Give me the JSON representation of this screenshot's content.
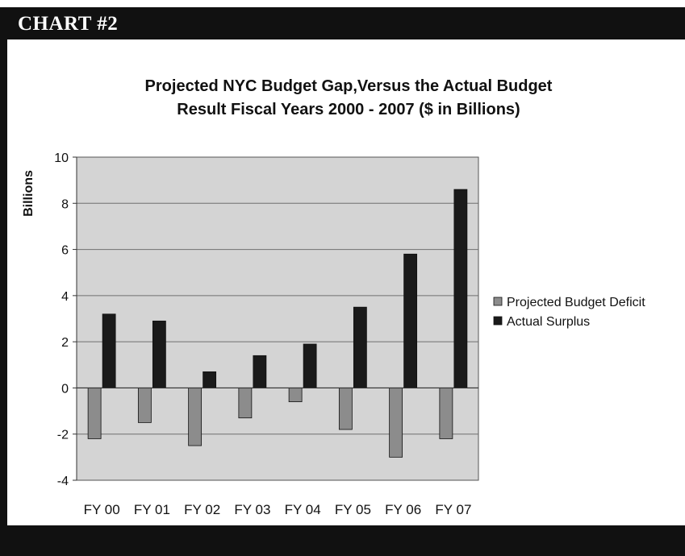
{
  "header": {
    "title": "CHART #2"
  },
  "chart_data": {
    "type": "bar",
    "title": "Projected NYC Budget Gap,Versus the Actual Budget Result Fiscal Years 2000 - 2007 ($ in Billions)",
    "title_lines": [
      "Projected NYC Budget Gap,Versus the Actual Budget",
      "Result Fiscal Years 2000 - 2007 ($ in Billions)"
    ],
    "xlabel": "",
    "ylabel": "Billions",
    "ylim": [
      -4,
      10
    ],
    "yticks": [
      -4,
      -2,
      0,
      2,
      4,
      6,
      8,
      10
    ],
    "ytick_labels": [
      "-4",
      "-2",
      "0",
      "2",
      "4",
      "6",
      "8",
      "10"
    ],
    "categories": [
      "FY 00",
      "FY 01",
      "FY 02",
      "FY 03",
      "FY 04",
      "FY 05",
      "FY 06",
      "FY 07"
    ],
    "grid": true,
    "legend_position": "right",
    "series": [
      {
        "name": "Projected Budget Deficit",
        "color": "#8c8c8c",
        "values": [
          -2.2,
          -1.5,
          -2.5,
          -1.3,
          -0.6,
          -1.8,
          -3.0,
          -2.2
        ]
      },
      {
        "name": "Actual Surplus",
        "color": "#1a1a1a",
        "values": [
          3.2,
          2.9,
          0.7,
          1.4,
          1.9,
          3.5,
          5.8,
          8.6
        ]
      }
    ],
    "colors": {
      "plot_background": "#d4d4d4",
      "gridline": "#6f6f6f"
    }
  }
}
